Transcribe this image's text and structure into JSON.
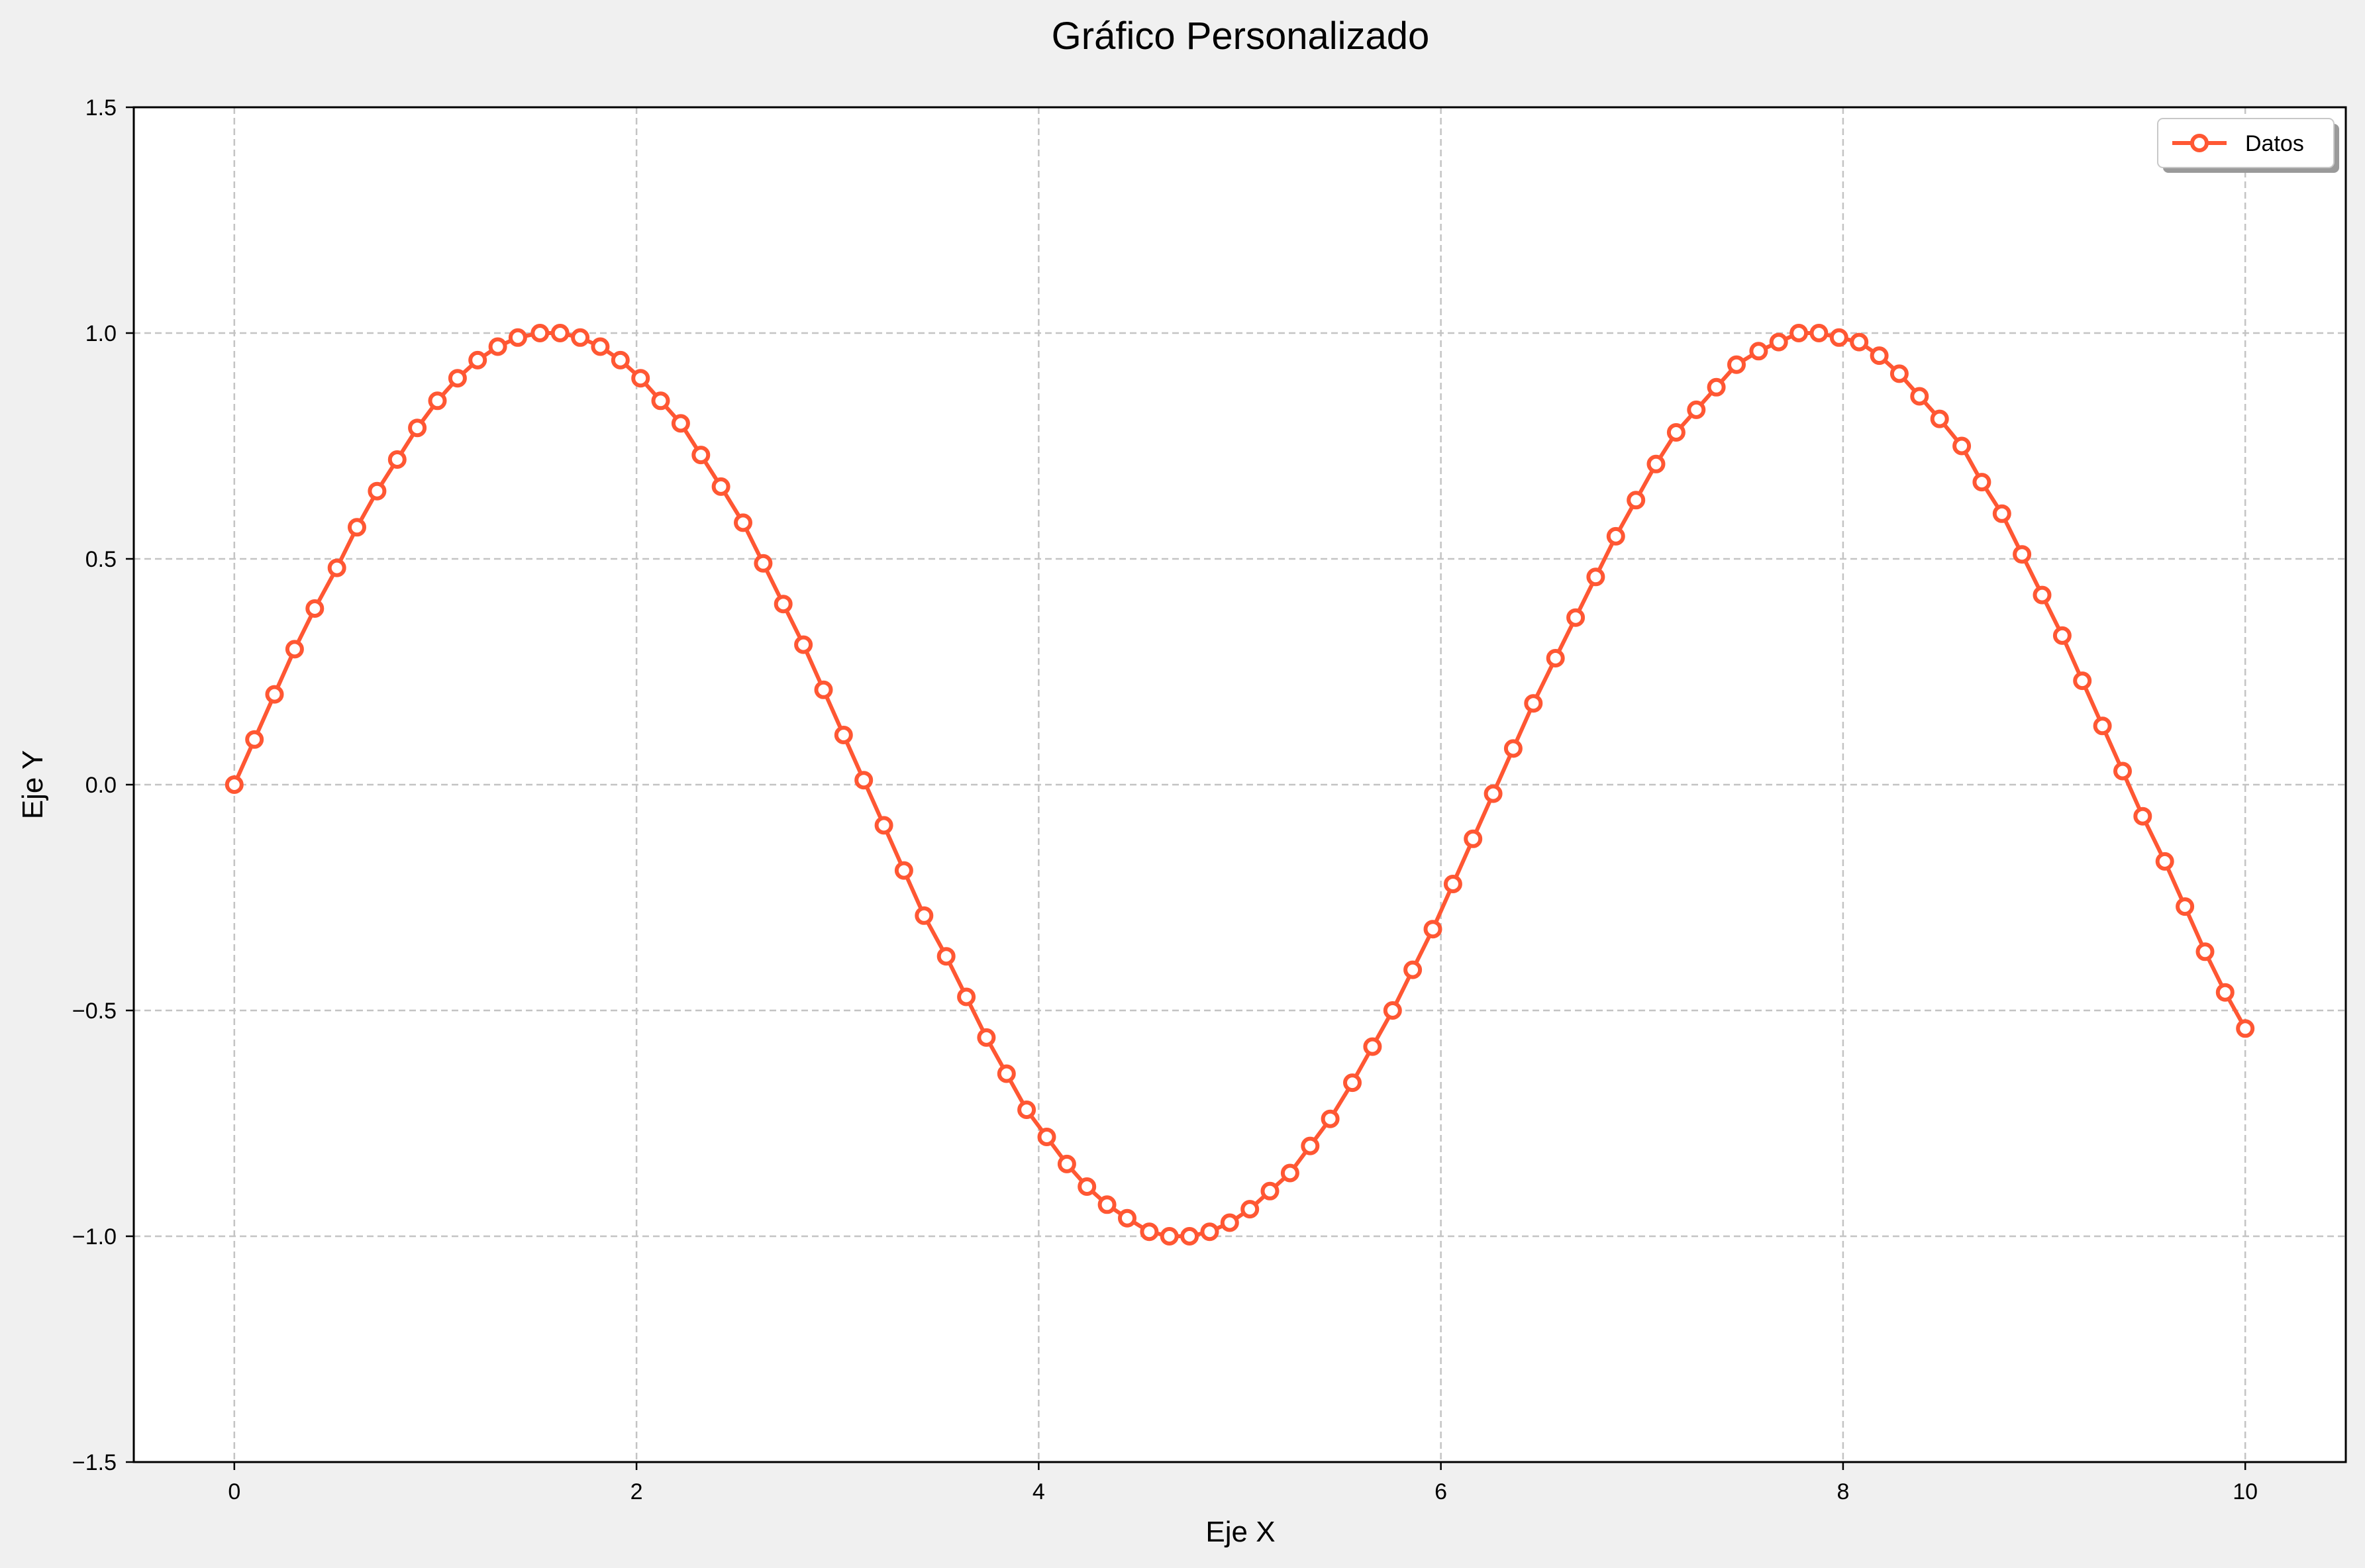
{
  "chart_data": {
    "type": "line",
    "title": "Gráfico Personalizado",
    "xlabel": "Eje X",
    "ylabel": "Eje Y",
    "xlim": [
      -0.5,
      10.5
    ],
    "ylim": [
      -1.5,
      1.5
    ],
    "xticks": [
      0,
      2,
      4,
      6,
      8,
      10
    ],
    "xtick_labels": [
      "0",
      "2",
      "4",
      "6",
      "8",
      "10"
    ],
    "yticks": [
      -1.5,
      -1.0,
      -0.5,
      0.0,
      0.5,
      1.0,
      1.5
    ],
    "ytick_labels": [
      "−1.5",
      "−1.0",
      "−0.5",
      "0.0",
      "0.5",
      "1.0",
      "1.5"
    ],
    "grid": true,
    "legend_position": "top-right",
    "series": [
      {
        "name": "Datos",
        "color": "#ff5733",
        "marker": "circle-open",
        "x": [
          0.0,
          0.1,
          0.2,
          0.3,
          0.4,
          0.51,
          0.61,
          0.71,
          0.81,
          0.91,
          1.01,
          1.11,
          1.21,
          1.31,
          1.41,
          1.52,
          1.62,
          1.72,
          1.82,
          1.92,
          2.02,
          2.12,
          2.22,
          2.32,
          2.42,
          2.53,
          2.63,
          2.73,
          2.83,
          2.93,
          3.03,
          3.13,
          3.23,
          3.33,
          3.43,
          3.54,
          3.64,
          3.74,
          3.84,
          3.94,
          4.04,
          4.14,
          4.24,
          4.34,
          4.44,
          4.55,
          4.65,
          4.75,
          4.85,
          4.95,
          5.05,
          5.15,
          5.25,
          5.35,
          5.45,
          5.56,
          5.66,
          5.76,
          5.86,
          5.96,
          6.06,
          6.16,
          6.26,
          6.36,
          6.46,
          6.57,
          6.67,
          6.77,
          6.87,
          6.97,
          7.07,
          7.17,
          7.27,
          7.37,
          7.47,
          7.58,
          7.68,
          7.78,
          7.88,
          7.98,
          8.08,
          8.18,
          8.28,
          8.38,
          8.48,
          8.59,
          8.69,
          8.79,
          8.89,
          8.99,
          9.09,
          9.19,
          9.29,
          9.39,
          9.49,
          9.6,
          9.7,
          9.8,
          9.9,
          10.0
        ],
        "y": [
          0.0,
          0.1,
          0.2,
          0.3,
          0.39,
          0.48,
          0.57,
          0.65,
          0.72,
          0.79,
          0.85,
          0.9,
          0.94,
          0.97,
          0.99,
          1.0,
          1.0,
          0.99,
          0.97,
          0.94,
          0.9,
          0.85,
          0.8,
          0.73,
          0.66,
          0.58,
          0.49,
          0.4,
          0.31,
          0.21,
          0.11,
          0.01,
          -0.09,
          -0.19,
          -0.29,
          -0.38,
          -0.47,
          -0.56,
          -0.64,
          -0.72,
          -0.78,
          -0.84,
          -0.89,
          -0.93,
          -0.96,
          -0.99,
          -1.0,
          -1.0,
          -0.99,
          -0.97,
          -0.94,
          -0.9,
          -0.86,
          -0.8,
          -0.74,
          -0.66,
          -0.58,
          -0.5,
          -0.41,
          -0.32,
          -0.22,
          -0.12,
          -0.02,
          0.08,
          0.18,
          0.28,
          0.37,
          0.46,
          0.55,
          0.63,
          0.71,
          0.78,
          0.83,
          0.88,
          0.93,
          0.96,
          0.98,
          1.0,
          1.0,
          0.99,
          0.98,
          0.95,
          0.91,
          0.86,
          0.81,
          0.75,
          0.67,
          0.6,
          0.51,
          0.42,
          0.33,
          0.23,
          0.13,
          0.03,
          -0.07,
          -0.17,
          -0.27,
          -0.37,
          -0.46,
          -0.54
        ]
      }
    ]
  }
}
